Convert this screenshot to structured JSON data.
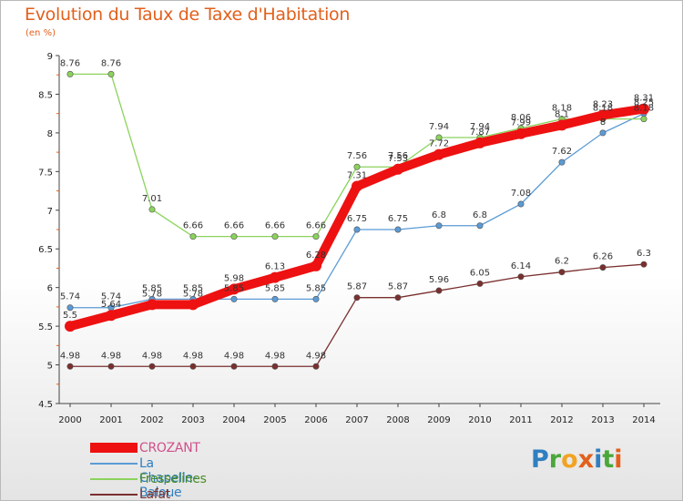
{
  "header": {
    "title": "Evolution du Taux de Taxe d'Habitation",
    "unit": "(en %)"
  },
  "logo": {
    "text": "Proxiti",
    "letter_colors": [
      "#2f7fc1",
      "#4aa83a",
      "#f2a323",
      "#e2601c",
      "#2f7fc1",
      "#4aa83a",
      "#e2601c"
    ]
  },
  "chart_data": {
    "type": "line",
    "title": "Evolution du Taux de Taxe d'Habitation",
    "ylabel": "(en %)",
    "xlabel": "",
    "x": [
      "2000",
      "2001",
      "2002",
      "2003",
      "2004",
      "2005",
      "2006",
      "2007",
      "2008",
      "2009",
      "2010",
      "2011",
      "2012",
      "2013",
      "2014"
    ],
    "ylim": [
      4.5,
      9
    ],
    "yticks": [
      "4.5",
      "5",
      "5.5",
      "6",
      "6.5",
      "7",
      "7.5",
      "8",
      "8.5",
      "9"
    ],
    "grid": false,
    "legend_position": "bottom-left",
    "series": [
      {
        "name": "CROZANT",
        "color": "#ee1111",
        "values": [
          5.5,
          5.64,
          5.78,
          5.78,
          5.98,
          6.13,
          6.28,
          7.31,
          7.53,
          7.72,
          7.87,
          7.99,
          8.1,
          8.23,
          8.31
        ],
        "labels": [
          "5.5",
          "5.64",
          "5.78",
          "5.78",
          "5.98",
          "6.13",
          "6.28",
          "7.31",
          "7.53",
          "7.72",
          "7.87",
          "7.99",
          "8.1",
          "8.23",
          "8.31"
        ]
      },
      {
        "name": "La Chapelle-Baloue",
        "color": "#5b9bd5",
        "values": [
          5.74,
          5.74,
          5.85,
          5.85,
          5.85,
          5.85,
          5.85,
          6.75,
          6.75,
          6.8,
          6.8,
          7.08,
          7.62,
          8.0,
          8.25
        ],
        "labels": [
          "5.74",
          "5.74",
          "5.85",
          "5.85",
          "5.85",
          "5.85",
          "5.85",
          "6.75",
          "6.75",
          "6.8",
          "6.8",
          "7.08",
          "7.62",
          "8",
          "8.25"
        ]
      },
      {
        "name": "Fresselines",
        "color": "#8bd35c",
        "values": [
          8.76,
          8.76,
          7.01,
          6.66,
          6.66,
          6.66,
          6.66,
          7.56,
          7.56,
          7.94,
          7.94,
          8.06,
          8.18,
          8.18,
          8.18
        ],
        "labels": [
          "8.76",
          "8.76",
          "7.01",
          "6.66",
          "6.66",
          "6.66",
          "6.66",
          "7.56",
          "7.56",
          "7.94",
          "7.94",
          "8.06",
          "8.18",
          "8.18",
          "8.18"
        ]
      },
      {
        "name": "Lafat",
        "color": "#7a2f2f",
        "values": [
          4.98,
          4.98,
          4.98,
          4.98,
          4.98,
          4.98,
          4.98,
          5.87,
          5.87,
          5.96,
          6.05,
          6.14,
          6.2,
          6.26,
          6.3
        ],
        "labels": [
          "4.98",
          "4.98",
          "4.98",
          "4.98",
          "4.98",
          "4.98",
          "4.98",
          "5.87",
          "5.87",
          "5.96",
          "6.05",
          "6.14",
          "6.2",
          "6.26",
          "6.3"
        ]
      }
    ]
  }
}
